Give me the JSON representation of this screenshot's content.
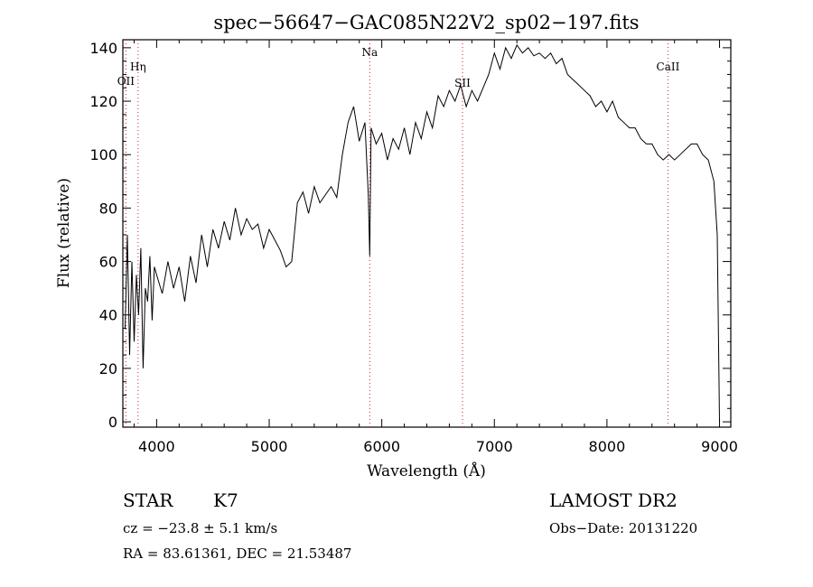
{
  "info": {
    "object_class": "STAR",
    "subclass": "K7",
    "survey": "LAMOST DR2",
    "cz": "cz = −23.8 ± 5.1 km/s",
    "obs_date": "Obs−Date: 20131220",
    "coords": "RA =  83.61361, DEC =  21.53487"
  },
  "chart_data": {
    "type": "line",
    "title": "spec−56647−GAC085N22V2_sp02−197.fits",
    "xlabel": "Wavelength (Å)",
    "ylabel": "Flux (relative)",
    "xlim": [
      3700,
      9100
    ],
    "ylim": [
      -2,
      143
    ],
    "x_ticks": [
      4000,
      5000,
      6000,
      7000,
      8000,
      9000
    ],
    "y_ticks": [
      0,
      20,
      40,
      60,
      80,
      100,
      120,
      140
    ],
    "grid": false,
    "line_color": "#000000",
    "marker_color": "#cc2222",
    "spectral_lines": [
      {
        "label": "OII",
        "x": 3727
      },
      {
        "label": "Hη",
        "x": 3835
      },
      {
        "label": "Na",
        "x": 5893
      },
      {
        "label": "SII",
        "x": 6717
      },
      {
        "label": "CaII",
        "x": 8542
      }
    ],
    "series": [
      {
        "x": [
          3720,
          3740,
          3760,
          3780,
          3800,
          3820,
          3840,
          3860,
          3880,
          3900,
          3920,
          3940,
          3960,
          3980,
          4000,
          4050,
          4100,
          4150,
          4200,
          4250,
          4300,
          4350,
          4400,
          4450,
          4500,
          4550,
          4600,
          4650,
          4700,
          4750,
          4800,
          4850,
          4900,
          4950,
          5000,
          5050,
          5100,
          5150,
          5200,
          5250,
          5300,
          5350,
          5400,
          5450,
          5500,
          5550,
          5600,
          5650,
          5700,
          5750,
          5800,
          5850,
          5880,
          5893,
          5905,
          5950,
          6000,
          6050,
          6100,
          6150,
          6200,
          6250,
          6300,
          6350,
          6400,
          6450,
          6500,
          6550,
          6600,
          6650,
          6700,
          6750,
          6800,
          6850,
          6900,
          6950,
          7000,
          7050,
          7100,
          7150,
          7200,
          7250,
          7300,
          7350,
          7400,
          7450,
          7500,
          7550,
          7600,
          7650,
          7700,
          7750,
          7800,
          7850,
          7900,
          7950,
          8000,
          8050,
          8100,
          8150,
          8200,
          8250,
          8300,
          8350,
          8400,
          8450,
          8500,
          8550,
          8600,
          8650,
          8700,
          8750,
          8800,
          8850,
          8900,
          8950,
          8980,
          9000
        ],
        "y": [
          35,
          70,
          25,
          60,
          30,
          55,
          40,
          65,
          20,
          50,
          45,
          62,
          38,
          58,
          55,
          48,
          60,
          50,
          58,
          45,
          62,
          52,
          70,
          58,
          72,
          65,
          75,
          68,
          80,
          70,
          76,
          72,
          74,
          65,
          72,
          68,
          64,
          58,
          60,
          82,
          86,
          78,
          88,
          82,
          85,
          88,
          84,
          100,
          112,
          118,
          105,
          112,
          85,
          62,
          110,
          104,
          108,
          98,
          106,
          102,
          110,
          100,
          112,
          106,
          116,
          110,
          122,
          118,
          124,
          120,
          126,
          118,
          124,
          120,
          125,
          130,
          138,
          132,
          140,
          136,
          141,
          138,
          140,
          137,
          138,
          136,
          138,
          134,
          136,
          130,
          128,
          126,
          124,
          122,
          118,
          120,
          116,
          120,
          114,
          112,
          110,
          110,
          106,
          104,
          104,
          100,
          98,
          100,
          98,
          100,
          102,
          104,
          104,
          100,
          98,
          90,
          70,
          0
        ]
      }
    ]
  }
}
